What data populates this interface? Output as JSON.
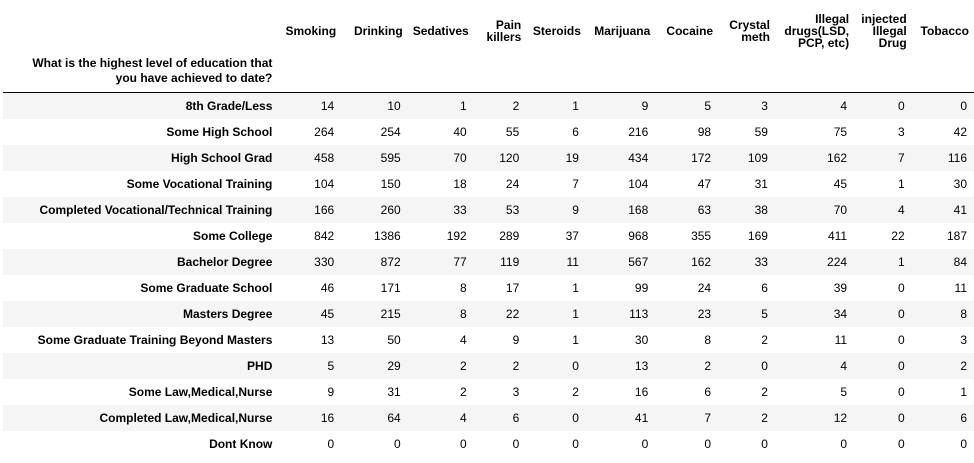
{
  "chart_data": {
    "type": "table",
    "index_name": "What is the highest level of education that you have achieved to date?",
    "columns": [
      "Smoking",
      "Drinking",
      "Sedatives",
      "Pain killers",
      "Steroids",
      "Marijuana",
      "Cocaine",
      "Crystal meth",
      "Illegal drugs(LSD, PCP, etc)",
      "injected Illegal Drug",
      "Tobacco"
    ],
    "rows": [
      {
        "label": "8th Grade/Less",
        "values": [
          14,
          10,
          1,
          2,
          1,
          9,
          5,
          3,
          4,
          0,
          0
        ]
      },
      {
        "label": "Some High School",
        "values": [
          264,
          254,
          40,
          55,
          6,
          216,
          98,
          59,
          75,
          3,
          42
        ]
      },
      {
        "label": "High School Grad",
        "values": [
          458,
          595,
          70,
          120,
          19,
          434,
          172,
          109,
          162,
          7,
          116
        ]
      },
      {
        "label": "Some Vocational Training",
        "values": [
          104,
          150,
          18,
          24,
          7,
          104,
          47,
          31,
          45,
          1,
          30
        ]
      },
      {
        "label": "Completed Vocational/Technical Training",
        "values": [
          166,
          260,
          33,
          53,
          9,
          168,
          63,
          38,
          70,
          4,
          41
        ]
      },
      {
        "label": "Some College",
        "values": [
          842,
          1386,
          192,
          289,
          37,
          968,
          355,
          169,
          411,
          22,
          187
        ]
      },
      {
        "label": "Bachelor Degree",
        "values": [
          330,
          872,
          77,
          119,
          11,
          567,
          162,
          33,
          224,
          1,
          84
        ]
      },
      {
        "label": "Some Graduate School",
        "values": [
          46,
          171,
          8,
          17,
          1,
          99,
          24,
          6,
          39,
          0,
          11
        ]
      },
      {
        "label": "Masters Degree",
        "values": [
          45,
          215,
          8,
          22,
          1,
          113,
          23,
          5,
          34,
          0,
          8
        ]
      },
      {
        "label": "Some Graduate Training Beyond Masters",
        "values": [
          13,
          50,
          4,
          9,
          1,
          30,
          8,
          2,
          11,
          0,
          3
        ]
      },
      {
        "label": "PHD",
        "values": [
          5,
          29,
          2,
          2,
          0,
          13,
          2,
          0,
          4,
          0,
          2
        ]
      },
      {
        "label": "Some Law,Medical,Nurse",
        "values": [
          9,
          31,
          2,
          3,
          2,
          16,
          6,
          2,
          5,
          0,
          1
        ]
      },
      {
        "label": "Completed Law,Medical,Nurse",
        "values": [
          16,
          64,
          4,
          6,
          0,
          41,
          7,
          2,
          12,
          0,
          6
        ]
      },
      {
        "label": "Dont Know",
        "values": [
          0,
          0,
          0,
          0,
          0,
          0,
          0,
          0,
          0,
          0,
          0
        ]
      }
    ]
  }
}
